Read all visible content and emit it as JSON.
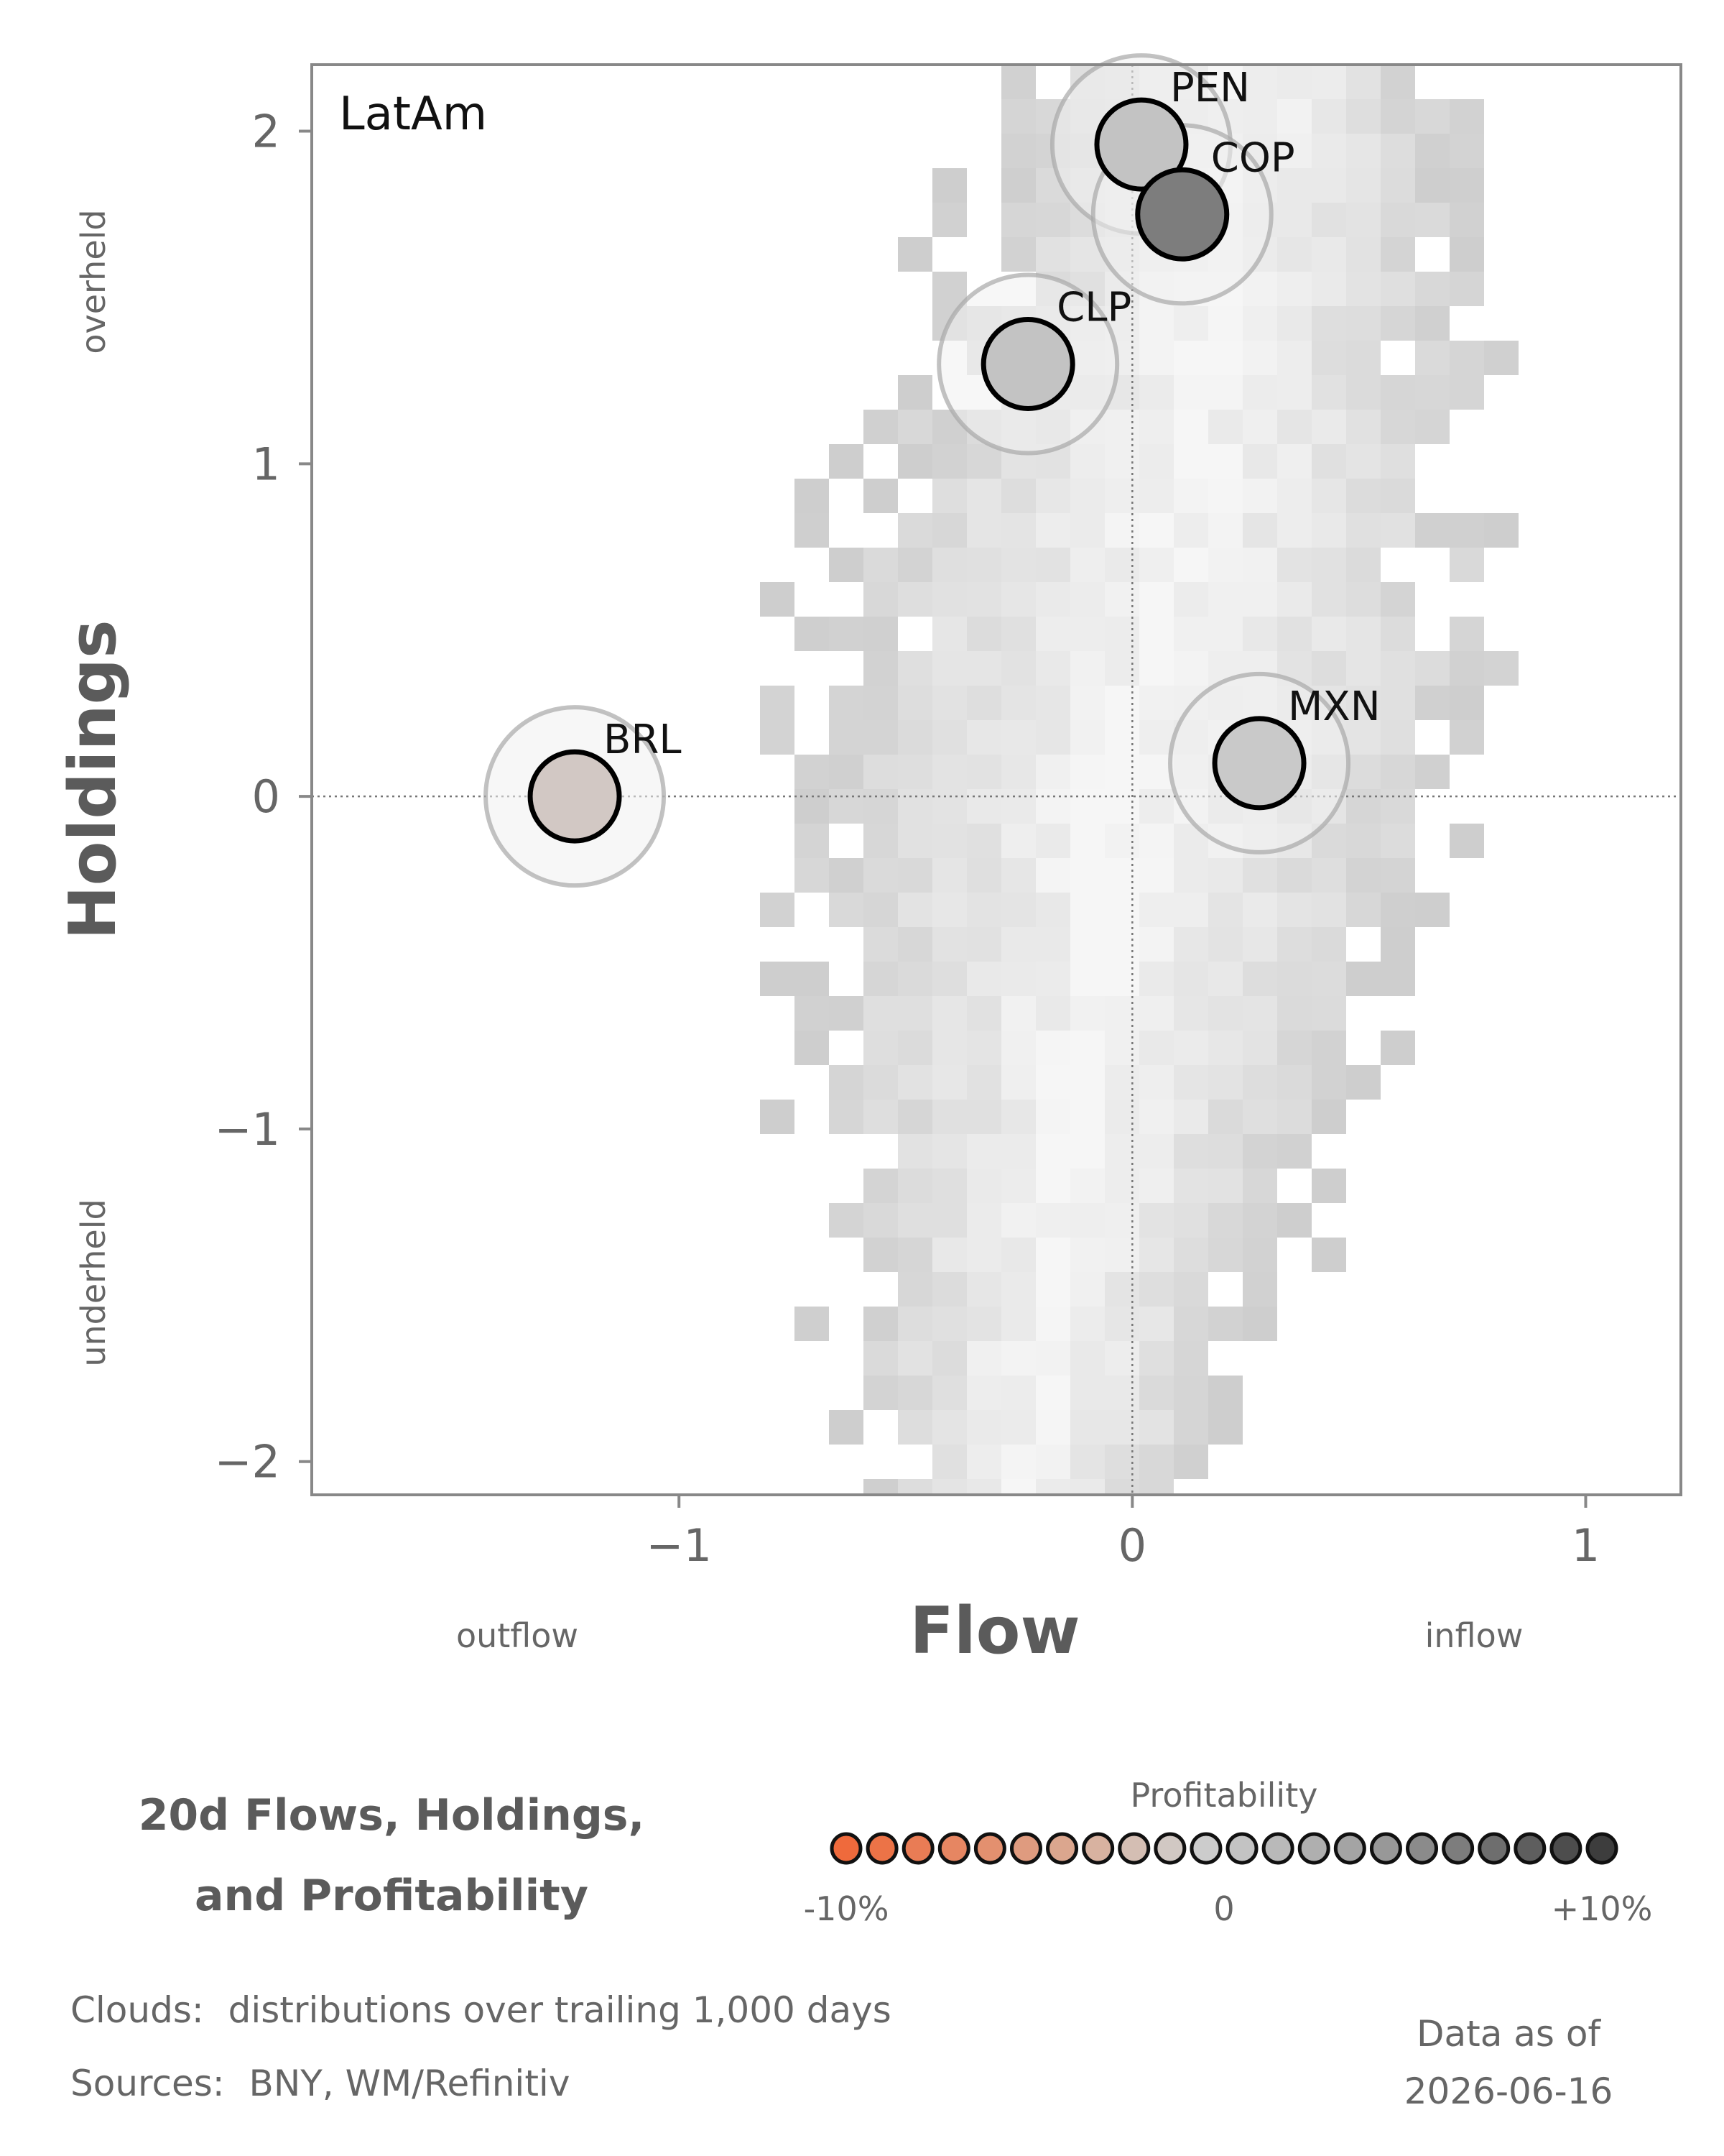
{
  "chart_data": {
    "type": "scatter",
    "panel_label": "LatAm",
    "xlabel": "Flow",
    "ylabel": "Holdings",
    "xlim": [
      -1.81,
      1.21
    ],
    "ylim": [
      -2.1,
      2.2
    ],
    "x_ticks": [
      -1,
      0,
      1
    ],
    "x_tick_labels": [
      "−1",
      "0",
      "1"
    ],
    "y_ticks": [
      -2,
      -1,
      0,
      1,
      2
    ],
    "y_tick_labels": [
      "−2",
      "−1",
      "0",
      "1",
      "2"
    ],
    "x_annotations": {
      "left": "outflow",
      "right": "inflow"
    },
    "y_annotations": {
      "top": "overheld",
      "bottom": "underheld"
    },
    "reference_lines": {
      "x": 0,
      "y": 0
    },
    "points": [
      {
        "label": "PEN",
        "x": 0.02,
        "y": 1.96,
        "profitability": 3,
        "color": "#c3c3c3"
      },
      {
        "label": "COP",
        "x": 0.11,
        "y": 1.75,
        "profitability": 7,
        "color": "#7d7d7d"
      },
      {
        "label": "CLP",
        "x": -0.23,
        "y": 1.3,
        "profitability": 3,
        "color": "#c3c3c3"
      },
      {
        "label": "MXN",
        "x": 0.28,
        "y": 0.1,
        "profitability": 2,
        "color": "#c9c9c9"
      },
      {
        "label": "BRL",
        "x": -1.23,
        "y": 0.0,
        "profitability": -1,
        "color": "#d2c8c4"
      }
    ],
    "cloud": {
      "description_key": "footer.clouds",
      "x_range": [
        -1.3,
        1.2
      ],
      "y_range": [
        -2.1,
        2.1
      ]
    },
    "colorbar": {
      "title": "Profitability",
      "range": [
        -10,
        10
      ],
      "tick_labels": [
        "-10%",
        "0",
        "+10%"
      ],
      "colors": [
        "#ef6a3c",
        "#ec7347",
        "#e97c55",
        "#e68662",
        "#e3906f",
        "#df9b7f",
        "#dba68e",
        "#d8b2a0",
        "#d4beb3",
        "#d1c8c3",
        "#cccccc",
        "#c3c3c3",
        "#b9b9b9",
        "#afafaf",
        "#a4a4a4",
        "#989898",
        "#8b8b8b",
        "#7d7d7d",
        "#6e6e6e",
        "#5e5e5e",
        "#4d4d4d",
        "#3d3d3d"
      ]
    }
  },
  "title": {
    "line1": "20d Flows, Holdings,",
    "line2": "and Profitability"
  },
  "footer": {
    "clouds_label": "Clouds:",
    "clouds": "distributions over trailing 1,000 days",
    "sources_label": "Sources:",
    "sources": "BNY, WM/Refinitiv",
    "date_label": "Data as of",
    "date": "2026-06-16"
  }
}
